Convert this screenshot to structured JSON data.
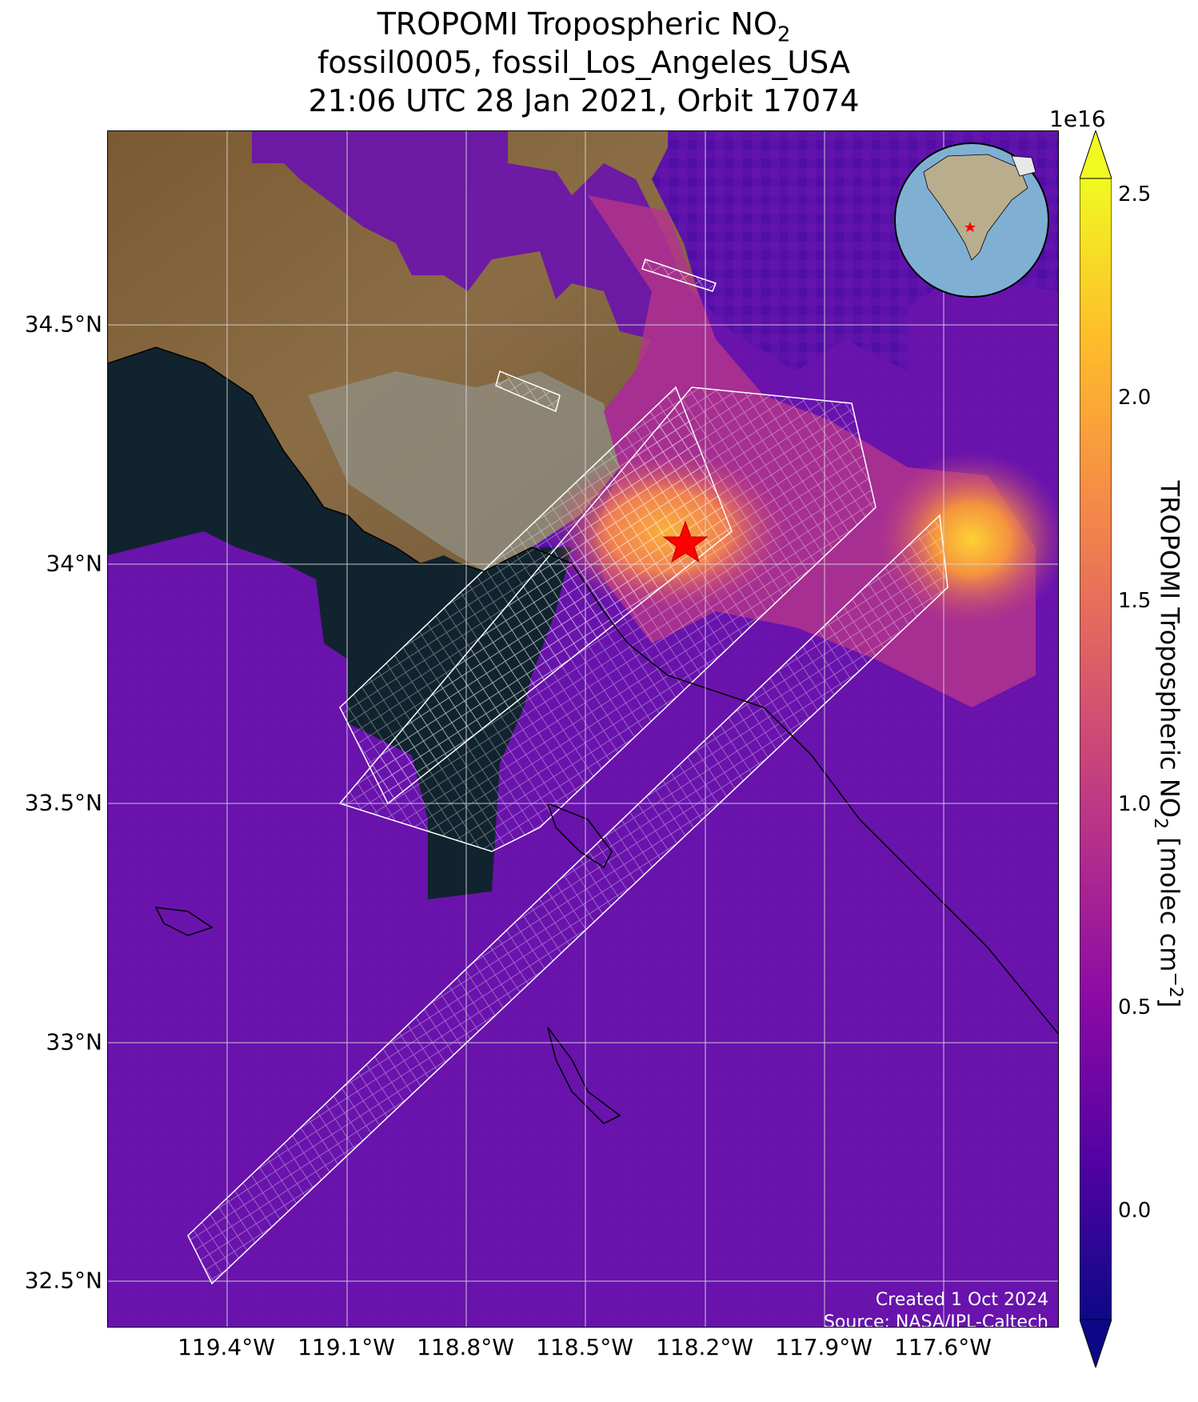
{
  "title": {
    "line1_main": "TROPOMI Tropospheric NO",
    "line1_sub": "2",
    "line2": "fossil0005, fossil_Los_Angeles_USA",
    "line3": "21:06 UTC 28 Jan 2021, Orbit 17074"
  },
  "axes": {
    "lat_labels": [
      "34.5°N",
      "34°N",
      "33.5°N",
      "33°N",
      "32.5°N"
    ],
    "lon_labels": [
      "119.4°W",
      "119.1°W",
      "118.8°W",
      "118.5°W",
      "118.2°W",
      "117.9°W",
      "117.6°W"
    ]
  },
  "colorbar": {
    "scale_label": "1e16",
    "ticks": [
      "2.5",
      "2.0",
      "1.5",
      "1.0",
      "0.5",
      "0.0"
    ],
    "title_main": "TROPOMI Tropospheric NO",
    "title_sub": "2",
    "title_unit_a": " [molec cm",
    "title_unit_sup": "−2",
    "title_unit_b": "]",
    "colors": [
      "#0d0887",
      "#5302a3",
      "#8b0aa5",
      "#b83289",
      "#db5c68",
      "#f48849",
      "#febd2a",
      "#f0f921"
    ]
  },
  "credits": {
    "created": "Created 1 Oct 2024",
    "source": "Source: NASA/JPL-Caltech"
  },
  "target": {
    "name": "fossil_Los_Angeles_USA",
    "marker": "red-star-icon"
  }
}
